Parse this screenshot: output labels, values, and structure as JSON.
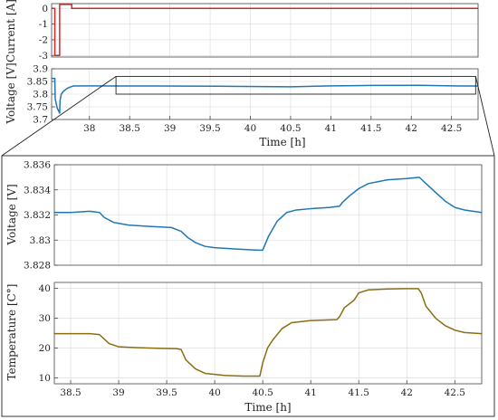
{
  "colors": {
    "current": "#d62728",
    "voltage": "#1f77b4",
    "temperature": "#8c6d12"
  },
  "chart_data": [
    {
      "type": "line",
      "ylabel": "Current [A]",
      "xlim": [
        37.53,
        42.83
      ],
      "ylim": [
        -3.1,
        0.3
      ],
      "yticks": [
        0,
        -1,
        -2,
        -3
      ],
      "yticklabels": [
        "0",
        "-1",
        "-2",
        "-3"
      ],
      "grid": true,
      "series": [
        {
          "x": [
            37.53,
            37.57,
            37.57,
            37.63,
            37.63,
            37.7,
            37.7,
            37.78,
            37.78,
            42.83
          ],
          "y": [
            0,
            0,
            -3.0,
            -3.0,
            0.25,
            0.25,
            0.25,
            0.25,
            0,
            0
          ]
        }
      ]
    },
    {
      "type": "line",
      "ylabel": "Voltage [V]",
      "xlabel": "Time [h]",
      "xlim": [
        37.53,
        42.83
      ],
      "ylim": [
        3.7,
        3.9
      ],
      "xticks": [
        38,
        38.5,
        39,
        39.5,
        40,
        40.5,
        41,
        41.5,
        42,
        42.5
      ],
      "xticklabels": [
        "38",
        "38.5",
        "39",
        "39.5",
        "40",
        "40.5",
        "41",
        "41.5",
        "42",
        "42.5"
      ],
      "yticks": [
        3.9,
        3.85,
        3.8,
        3.75,
        3.7
      ],
      "yticklabels": [
        "3.9",
        "3.85",
        "3.8",
        "3.75",
        "3.7"
      ],
      "grid": true,
      "zoom_region": {
        "x": [
          38.33,
          42.8
        ],
        "y": [
          3.8,
          3.87
        ]
      },
      "series": [
        {
          "x": [
            37.53,
            37.57,
            37.575,
            37.6,
            37.63,
            37.635,
            37.65,
            37.68,
            37.72,
            37.76,
            37.8,
            38.0,
            38.33,
            38.8,
            39.6,
            40.5,
            41.0,
            41.5,
            42.1,
            42.6,
            42.75,
            42.83
          ],
          "y": [
            3.862,
            3.862,
            3.78,
            3.745,
            3.725,
            3.775,
            3.8,
            3.812,
            3.822,
            3.828,
            3.832,
            3.8325,
            3.8322,
            3.8322,
            3.8312,
            3.8292,
            3.8325,
            3.8345,
            3.835,
            3.8323,
            3.8322,
            3.8322
          ]
        }
      ]
    },
    {
      "type": "line",
      "ylabel": "Voltage [V]",
      "xlim": [
        38.33,
        42.78
      ],
      "ylim": [
        3.828,
        3.836
      ],
      "yticks": [
        3.836,
        3.834,
        3.832,
        3.83,
        3.828
      ],
      "yticklabels": [
        "3.836",
        "3.834",
        "3.832",
        "3.83",
        "3.828"
      ],
      "grid": true,
      "series": [
        {
          "x": [
            38.33,
            38.5,
            38.7,
            38.8,
            38.85,
            38.95,
            39.1,
            39.3,
            39.55,
            39.65,
            39.72,
            39.8,
            39.9,
            40.0,
            40.2,
            40.45,
            40.5,
            40.56,
            40.65,
            40.75,
            40.85,
            41.0,
            41.2,
            41.3,
            41.33,
            41.4,
            41.5,
            41.6,
            41.8,
            42.0,
            42.13,
            42.2,
            42.3,
            42.4,
            42.5,
            42.6,
            42.78
          ],
          "y": [
            3.8322,
            3.8322,
            3.8323,
            3.8322,
            3.8318,
            3.8314,
            3.8312,
            3.8311,
            3.831,
            3.8307,
            3.8302,
            3.8298,
            3.8295,
            3.8294,
            3.8293,
            3.8292,
            3.8292,
            3.8303,
            3.8315,
            3.8322,
            3.8324,
            3.8325,
            3.8326,
            3.8327,
            3.833,
            3.8335,
            3.8341,
            3.8345,
            3.8348,
            3.8349,
            3.835,
            3.8345,
            3.8338,
            3.8331,
            3.8326,
            3.8324,
            3.8322
          ]
        }
      ]
    },
    {
      "type": "line",
      "ylabel": "Temperature [C°]",
      "xlabel": "Time [h]",
      "xlim": [
        38.33,
        42.78
      ],
      "ylim": [
        8,
        42
      ],
      "xticks": [
        38.5,
        39,
        39.5,
        40,
        40.5,
        41,
        41.5,
        42,
        42.5
      ],
      "xticklabels": [
        "38.5",
        "39",
        "39.5",
        "40",
        "40.5",
        "41",
        "41.5",
        "42",
        "42.5"
      ],
      "yticks": [
        40,
        30,
        20,
        10
      ],
      "yticklabels": [
        "40",
        "30",
        "20",
        "10"
      ],
      "grid": true,
      "series": [
        {
          "x": [
            38.33,
            38.5,
            38.7,
            38.8,
            38.85,
            38.9,
            39.0,
            39.2,
            39.4,
            39.6,
            39.65,
            39.7,
            39.8,
            39.9,
            40.1,
            40.3,
            40.47,
            40.5,
            40.55,
            40.6,
            40.7,
            40.8,
            41.0,
            41.27,
            41.3,
            41.35,
            41.45,
            41.5,
            41.6,
            41.8,
            42.0,
            42.12,
            42.15,
            42.2,
            42.3,
            42.4,
            42.5,
            42.6,
            42.78
          ],
          "y": [
            24.8,
            24.8,
            24.8,
            24.5,
            23.0,
            21.5,
            20.4,
            20.1,
            19.9,
            19.8,
            19.5,
            16.0,
            13.0,
            11.5,
            10.8,
            10.6,
            10.6,
            15.0,
            20.0,
            22.5,
            26.5,
            28.5,
            29.2,
            29.5,
            30.5,
            33.5,
            36.0,
            38.5,
            39.5,
            39.8,
            39.9,
            39.9,
            38.5,
            34.0,
            30.0,
            27.5,
            26.0,
            25.2,
            24.8
          ]
        }
      ]
    }
  ]
}
